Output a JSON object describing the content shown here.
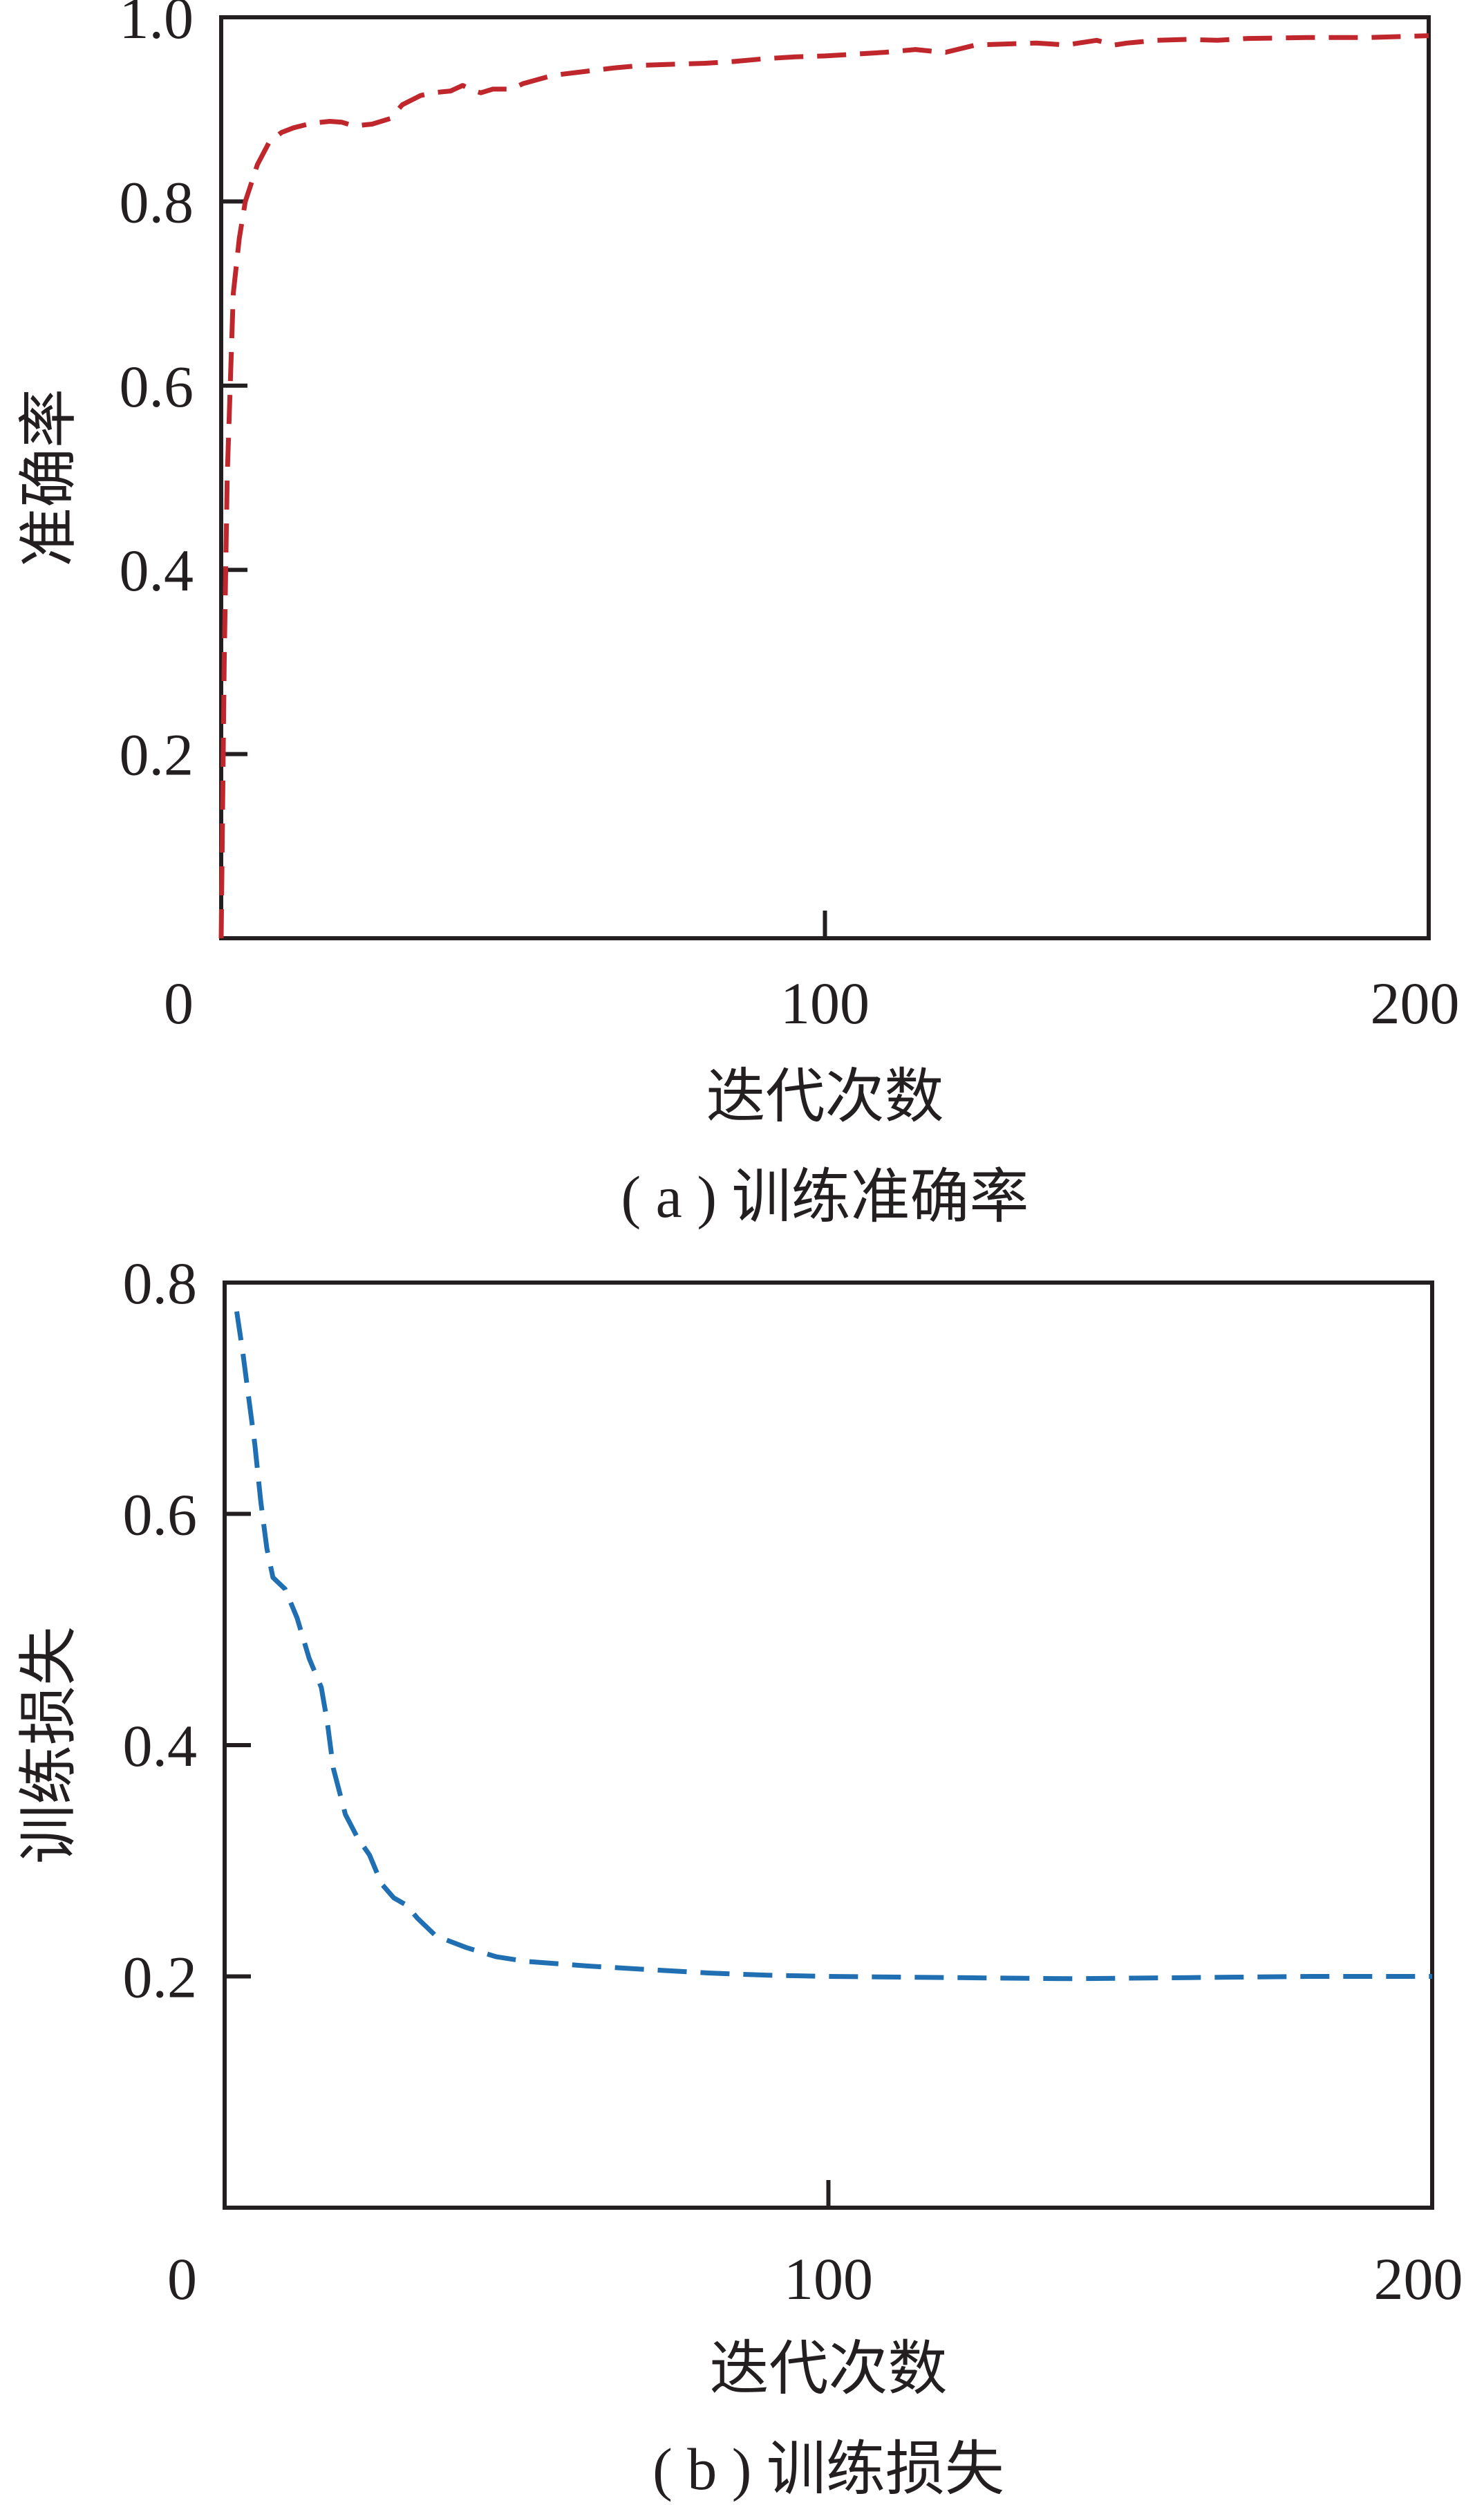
{
  "chart_data": [
    {
      "type": "line",
      "caption": "( a ) 训练准确率",
      "xlabel": "迭代次数",
      "ylabel": "准确率",
      "xlim": [
        0,
        200
      ],
      "ylim": [
        0,
        1.0
      ],
      "xticks": [
        0,
        100,
        200
      ],
      "xtick_labels": [
        "0",
        "100",
        "200"
      ],
      "yticks": [
        0.2,
        0.4,
        0.6,
        0.8,
        1.0
      ],
      "ytick_labels": [
        "0.2",
        "0.4",
        "0.6",
        "0.8",
        "1.0"
      ],
      "grid": false,
      "line_style": "dashed",
      "color": "#c0272d",
      "x": [
        0,
        0.5,
        1,
        1.5,
        2,
        3,
        4,
        5,
        6,
        8,
        10,
        12,
        15,
        18,
        20,
        22,
        25,
        28,
        30,
        33,
        35,
        38,
        40,
        42,
        43,
        45,
        48,
        50,
        55,
        60,
        65,
        70,
        75,
        80,
        85,
        90,
        95,
        100,
        105,
        110,
        115,
        118,
        120,
        125,
        130,
        135,
        140,
        145,
        148,
        150,
        155,
        160,
        165,
        170,
        180,
        190,
        200
      ],
      "y": [
        0.0,
        0.3,
        0.5,
        0.6,
        0.7,
        0.76,
        0.8,
        0.82,
        0.84,
        0.865,
        0.875,
        0.88,
        0.885,
        0.887,
        0.886,
        0.882,
        0.884,
        0.89,
        0.905,
        0.915,
        0.918,
        0.92,
        0.926,
        0.92,
        0.918,
        0.922,
        0.922,
        0.928,
        0.937,
        0.941,
        0.945,
        0.948,
        0.949,
        0.95,
        0.952,
        0.955,
        0.957,
        0.958,
        0.96,
        0.962,
        0.965,
        0.963,
        0.962,
        0.97,
        0.971,
        0.972,
        0.97,
        0.975,
        0.97,
        0.972,
        0.975,
        0.976,
        0.975,
        0.977,
        0.978,
        0.978,
        0.98
      ]
    },
    {
      "type": "line",
      "caption": "( b ) 训练损失",
      "xlabel": "迭代次数",
      "ylabel": "训练损失",
      "xlim": [
        0,
        200
      ],
      "ylim": [
        0,
        0.8
      ],
      "xticks": [
        0,
        100,
        200
      ],
      "xtick_labels": [
        "0",
        "100",
        "200"
      ],
      "yticks": [
        0.2,
        0.4,
        0.6,
        0.8
      ],
      "ytick_labels": [
        "0.2",
        "0.4",
        "0.6",
        "0.8"
      ],
      "grid": false,
      "line_style": "dashed",
      "color": "#1f6fb2",
      "x": [
        2,
        3,
        4,
        5,
        6,
        7,
        8,
        10,
        12,
        14,
        16,
        17,
        18,
        20,
        22,
        24,
        26,
        28,
        30,
        32,
        35,
        40,
        45,
        50,
        60,
        70,
        80,
        90,
        100,
        120,
        140,
        160,
        180,
        200
      ],
      "y": [
        0.775,
        0.74,
        0.7,
        0.66,
        0.61,
        0.57,
        0.545,
        0.535,
        0.51,
        0.475,
        0.45,
        0.42,
        0.38,
        0.34,
        0.32,
        0.305,
        0.28,
        0.268,
        0.262,
        0.25,
        0.235,
        0.225,
        0.217,
        0.213,
        0.209,
        0.206,
        0.203,
        0.201,
        0.2,
        0.199,
        0.198,
        0.199,
        0.2,
        0.2
      ]
    }
  ]
}
